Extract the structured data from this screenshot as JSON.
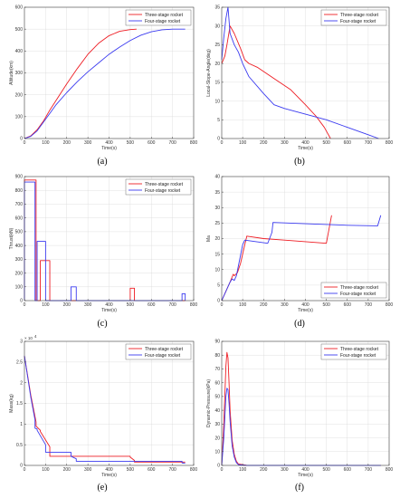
{
  "colors": {
    "three": "#ee1d24",
    "four": "#3b3bf0",
    "grid": "#d9d9d9",
    "axis": "#444444"
  },
  "chart_data": [
    {
      "id": "a",
      "type": "line",
      "caption": "(a)",
      "xlabel": "Time(s)",
      "ylabel": "Altitude(km)",
      "xlim": [
        0,
        800
      ],
      "ylim": [
        0,
        600
      ],
      "xticks": [
        0,
        100,
        200,
        300,
        400,
        500,
        600,
        700,
        800
      ],
      "yticks": [
        0,
        100,
        200,
        300,
        400,
        500,
        600
      ],
      "grid": true,
      "legend": "top-right",
      "series": [
        {
          "name": "Three-stage rocket",
          "color": "three",
          "x": [
            0,
            30,
            60,
            90,
            120,
            150,
            200,
            250,
            300,
            350,
            400,
            450,
            500,
            530
          ],
          "y": [
            0,
            12,
            40,
            80,
            130,
            175,
            250,
            320,
            385,
            435,
            470,
            490,
            498,
            500
          ]
        },
        {
          "name": "Four-stage rocket",
          "color": "four",
          "x": [
            0,
            30,
            60,
            90,
            120,
            150,
            200,
            250,
            300,
            350,
            400,
            450,
            500,
            550,
            600,
            650,
            700,
            760
          ],
          "y": [
            0,
            10,
            35,
            75,
            115,
            155,
            210,
            260,
            305,
            345,
            385,
            418,
            448,
            472,
            488,
            497,
            500,
            500
          ]
        }
      ]
    },
    {
      "id": "b",
      "type": "line",
      "caption": "(b)",
      "xlabel": "Time(s)",
      "ylabel": "Local-Slope-Angle(deg)",
      "xlim": [
        0,
        800
      ],
      "ylim": [
        0,
        35
      ],
      "xticks": [
        0,
        100,
        200,
        300,
        400,
        500,
        600,
        700,
        800
      ],
      "yticks": [
        0,
        5,
        10,
        15,
        20,
        25,
        30,
        35
      ],
      "grid": true,
      "legend": "top-right",
      "series": [
        {
          "name": "Three-stage rocket",
          "color": "three",
          "x": [
            0,
            15,
            25,
            40,
            60,
            90,
            110,
            130,
            170,
            250,
            330,
            400,
            450,
            490,
            520
          ],
          "y": [
            20,
            22,
            25,
            30,
            28,
            24,
            21,
            20,
            19,
            16,
            13,
            9,
            6,
            3,
            0
          ]
        },
        {
          "name": "Four-stage rocket",
          "color": "four",
          "x": [
            0,
            10,
            20,
            30,
            40,
            60,
            80,
            100,
            130,
            200,
            250,
            300,
            400,
            500,
            600,
            700,
            750
          ],
          "y": [
            21,
            27,
            32,
            35,
            28,
            25,
            23,
            20,
            16.5,
            12,
            9,
            8,
            6.5,
            5,
            3,
            1,
            0
          ]
        }
      ]
    },
    {
      "id": "c",
      "type": "line",
      "caption": "(c)",
      "xlabel": "Time(s)",
      "ylabel": "Thrust(kN)",
      "xlim": [
        0,
        800
      ],
      "ylim": [
        0,
        900
      ],
      "xticks": [
        0,
        100,
        200,
        300,
        400,
        500,
        600,
        700,
        800
      ],
      "yticks": [
        0,
        100,
        200,
        300,
        400,
        500,
        600,
        700,
        800,
        900
      ],
      "grid": true,
      "legend": "top-right",
      "series": [
        {
          "name": "Three-stage rocket",
          "color": "three",
          "x": [
            0,
            0,
            55,
            55,
            55,
            75,
            75,
            120,
            120,
            120,
            500,
            500,
            520,
            520,
            760
          ],
          "y": [
            0,
            875,
            875,
            0,
            0,
            0,
            290,
            290,
            0,
            0,
            0,
            90,
            90,
            0,
            0
          ]
        },
        {
          "name": "Four-stage rocket",
          "color": "four",
          "x": [
            0,
            0,
            50,
            50,
            60,
            60,
            100,
            100,
            220,
            220,
            245,
            245,
            745,
            745,
            760,
            760
          ],
          "y": [
            0,
            860,
            860,
            0,
            0,
            430,
            430,
            0,
            0,
            100,
            100,
            0,
            0,
            50,
            50,
            0
          ]
        }
      ]
    },
    {
      "id": "d",
      "type": "line",
      "caption": "(d)",
      "xlabel": "Time(s)",
      "ylabel": "Ma",
      "xlim": [
        0,
        800
      ],
      "ylim": [
        0,
        40
      ],
      "xticks": [
        0,
        100,
        200,
        300,
        400,
        500,
        600,
        700,
        800
      ],
      "yticks": [
        0,
        5,
        10,
        15,
        20,
        25,
        30,
        35,
        40
      ],
      "grid": true,
      "legend": "bottom-right",
      "series": [
        {
          "name": "Three-stage rocket",
          "color": "three",
          "x": [
            0,
            20,
            40,
            55,
            60,
            75,
            90,
            110,
            120,
            200,
            300,
            400,
            500,
            500,
            525
          ],
          "y": [
            0,
            3,
            6,
            8.5,
            8,
            9,
            12,
            18,
            20.8,
            20,
            19.5,
            19,
            18.5,
            18.5,
            27.5
          ]
        },
        {
          "name": "Four-stage rocket",
          "color": "four",
          "x": [
            0,
            20,
            40,
            50,
            60,
            70,
            85,
            100,
            110,
            220,
            240,
            245,
            400,
            600,
            745,
            760
          ],
          "y": [
            0,
            3,
            6,
            7,
            6.5,
            8,
            13,
            18,
            19.5,
            18.5,
            22,
            25.2,
            24.8,
            24.3,
            24.1,
            27.5
          ]
        }
      ]
    },
    {
      "id": "e",
      "type": "line",
      "caption": "(e)",
      "xlabel": "Time(s)",
      "ylabel": "Mass(kg)",
      "y_exponent": "× 10",
      "y_exponent_power": "4",
      "xlim": [
        0,
        800
      ],
      "ylim": [
        0,
        3
      ],
      "xticks": [
        0,
        100,
        200,
        300,
        400,
        500,
        600,
        700,
        800
      ],
      "yticks": [
        0,
        0.5,
        1,
        1.5,
        2,
        2.5,
        3
      ],
      "grid": true,
      "legend": "top-right",
      "series": [
        {
          "name": "Three-stage rocket",
          "color": "three",
          "x": [
            0,
            30,
            55,
            55,
            75,
            75,
            120,
            120,
            500,
            500,
            520,
            520,
            760
          ],
          "y": [
            2.65,
            1.7,
            1.05,
            0.95,
            0.85,
            0.82,
            0.45,
            0.22,
            0.22,
            0.2,
            0.12,
            0.08,
            0.08
          ]
        },
        {
          "name": "Four-stage rocket",
          "color": "four",
          "x": [
            0,
            30,
            50,
            50,
            60,
            60,
            100,
            100,
            220,
            220,
            245,
            245,
            745,
            745,
            760
          ],
          "y": [
            2.65,
            1.65,
            1.1,
            0.9,
            0.88,
            0.85,
            0.5,
            0.32,
            0.32,
            0.22,
            0.16,
            0.1,
            0.1,
            0.06,
            0.05
          ]
        }
      ]
    },
    {
      "id": "f",
      "type": "line",
      "caption": "(f)",
      "xlabel": "Time(s)",
      "ylabel": "Dynamic-Pressure(kPa)",
      "xlim": [
        0,
        800
      ],
      "ylim": [
        0,
        90
      ],
      "xticks": [
        0,
        100,
        200,
        300,
        400,
        500,
        600,
        700,
        800
      ],
      "yticks": [
        0,
        10,
        20,
        30,
        40,
        50,
        60,
        70,
        80,
        90
      ],
      "grid": true,
      "legend": "top-right",
      "series": [
        {
          "name": "Three-stage rocket",
          "color": "three",
          "x": [
            0,
            10,
            20,
            25,
            30,
            35,
            40,
            50,
            60,
            70,
            80,
            120,
            760
          ],
          "y": [
            0,
            30,
            72,
            82,
            78,
            60,
            40,
            18,
            8,
            3,
            1,
            0,
            0
          ]
        },
        {
          "name": "Four-stage rocket",
          "color": "four",
          "x": [
            0,
            10,
            20,
            25,
            30,
            35,
            40,
            50,
            60,
            70,
            80,
            120,
            760
          ],
          "y": [
            0,
            20,
            50,
            56,
            55,
            45,
            32,
            14,
            6,
            2,
            0.5,
            0,
            0
          ]
        }
      ]
    }
  ]
}
